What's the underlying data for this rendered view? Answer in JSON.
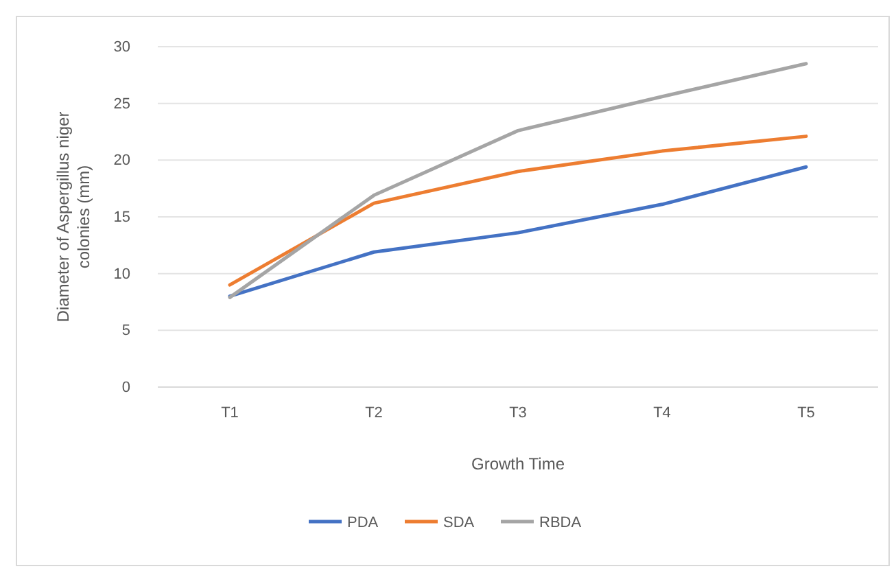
{
  "chart_data": {
    "type": "line",
    "xlabel": "Growth Time",
    "ylabel": "Diameter of Aspergillus niger colonies (mm)",
    "categories": [
      "T1",
      "T2",
      "T3",
      "T4",
      "T5"
    ],
    "series": [
      {
        "name": "PDA",
        "color": "#4472c4",
        "values": [
          8,
          11.9,
          13.6,
          16.1,
          19.4
        ]
      },
      {
        "name": "SDA",
        "color": "#ed7d31",
        "values": [
          9,
          16.2,
          19,
          20.8,
          22.1
        ]
      },
      {
        "name": "RBDA",
        "color": "#a5a5a5",
        "values": [
          7.9,
          16.9,
          22.6,
          25.6,
          28.5
        ]
      }
    ],
    "ylim": [
      0,
      30
    ],
    "yticks": [
      0,
      5,
      10,
      15,
      20,
      25,
      30
    ],
    "grid": "y",
    "legend": "bottom",
    "marker": "none",
    "line_style": "solid"
  }
}
